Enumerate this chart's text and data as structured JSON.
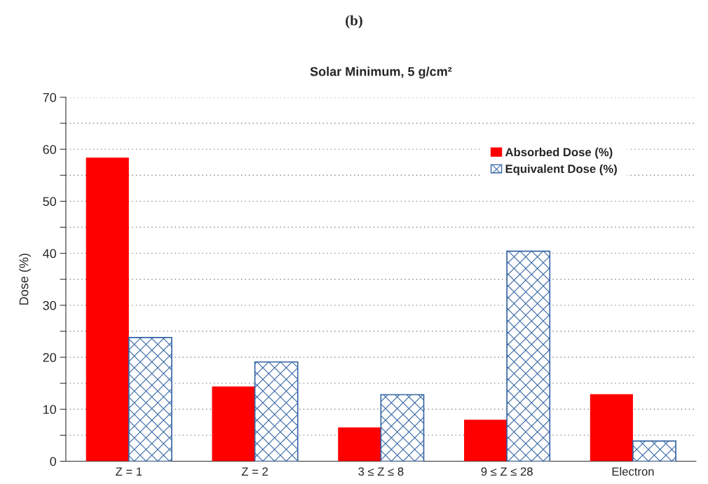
{
  "chart_data": {
    "type": "bar",
    "title": "(b)",
    "subtitle": "Solar Minimum, 5 g/cm²",
    "ylabel": "Dose (%)",
    "categories": [
      "Z = 1",
      "Z = 2",
      "3 ≤ Z ≤ 8",
      "9 ≤ Z ≤ 28",
      "Electron"
    ],
    "series": [
      {
        "name": "Absorbed Dose (%)",
        "color": "#ff0000",
        "values": [
          58.4,
          14.4,
          6.5,
          8.0,
          12.9
        ]
      },
      {
        "name": "Equivalent Dose (%)",
        "color": "#3465a4",
        "values": [
          23.8,
          19.1,
          12.8,
          40.4,
          3.9
        ]
      }
    ],
    "ylim": [
      0,
      70
    ],
    "yticks": [
      0,
      {
        "value": 5,
        "label": null
      },
      10,
      {
        "value": 15,
        "label": null
      },
      20,
      {
        "value": 25,
        "label": null
      },
      30,
      {
        "value": 35,
        "label": null
      },
      40,
      {
        "value": 45,
        "label": null
      },
      50,
      {
        "value": 55,
        "label": null
      },
      60,
      {
        "value": 65,
        "label": null
      },
      70
    ],
    "grid": "y",
    "legend": "top right"
  }
}
